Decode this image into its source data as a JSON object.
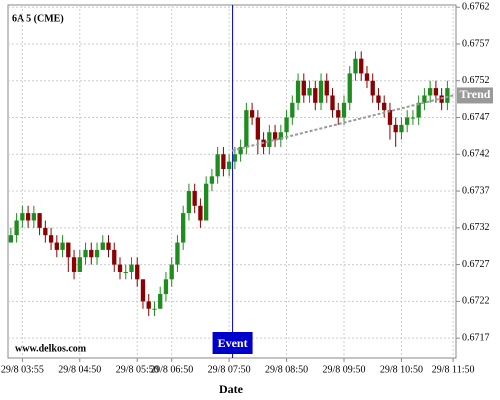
{
  "chart_data": {
    "type": "candlestick",
    "title": "6A 5 (CME)",
    "watermark": "www.delkos.com",
    "x_label": "Date",
    "up_color": "#1e8c1e",
    "down_color": "#8b0000",
    "open": [
      0.673,
      0.6731,
      0.6733,
      0.6734,
      0.6733,
      0.6734,
      0.6732,
      0.6731,
      0.673,
      0.6729,
      0.673,
      0.6728,
      0.6726,
      0.6728,
      0.6729,
      0.6728,
      0.6729,
      0.673,
      0.6729,
      0.6727,
      0.6726,
      0.6726,
      0.6727,
      0.6725,
      0.6722,
      0.6721,
      0.6721,
      0.6723,
      0.6725,
      0.6727,
      0.673,
      0.6734,
      0.6737,
      0.6735,
      0.6733,
      0.6738,
      0.6739,
      0.6742,
      0.674,
      0.6741,
      0.6742,
      0.6743,
      0.6748,
      0.6747,
      0.6744,
      0.6743,
      0.6745,
      0.6744,
      0.6745,
      0.6747,
      0.6749,
      0.6752,
      0.675,
      0.6751,
      0.6749,
      0.6752,
      0.675,
      0.6748,
      0.6747,
      0.6749,
      0.6753,
      0.6755,
      0.6753,
      0.6752,
      0.675,
      0.6749,
      0.6748,
      0.6746,
      0.6745,
      0.6746,
      0.6747,
      0.6747,
      0.6749,
      0.675,
      0.6751,
      0.675,
      0.6749
    ],
    "high": [
      0.6732,
      0.6734,
      0.6735,
      0.6735,
      0.6735,
      0.6734,
      0.6733,
      0.6732,
      0.6731,
      0.6731,
      0.673,
      0.6729,
      0.6729,
      0.673,
      0.673,
      0.673,
      0.6731,
      0.6731,
      0.673,
      0.6728,
      0.6727,
      0.6728,
      0.6728,
      0.6725,
      0.6723,
      0.6722,
      0.6724,
      0.6726,
      0.6728,
      0.6731,
      0.6735,
      0.6738,
      0.6738,
      0.6736,
      0.6739,
      0.674,
      0.6743,
      0.6743,
      0.6742,
      0.6743,
      0.6744,
      0.6749,
      0.6749,
      0.6748,
      0.6745,
      0.6746,
      0.6746,
      0.6746,
      0.6748,
      0.675,
      0.6753,
      0.6753,
      0.6752,
      0.6752,
      0.6753,
      0.6753,
      0.6751,
      0.6749,
      0.675,
      0.6754,
      0.6756,
      0.6756,
      0.6754,
      0.6753,
      0.6751,
      0.675,
      0.6749,
      0.6747,
      0.6747,
      0.6748,
      0.6748,
      0.675,
      0.6751,
      0.6752,
      0.6752,
      0.6751,
      0.6752
    ],
    "low": [
      0.673,
      0.673,
      0.6732,
      0.6732,
      0.6732,
      0.6731,
      0.673,
      0.6729,
      0.6728,
      0.6728,
      0.6726,
      0.6725,
      0.6726,
      0.6727,
      0.6727,
      0.6727,
      0.6729,
      0.6728,
      0.6726,
      0.6725,
      0.6725,
      0.6725,
      0.6724,
      0.6721,
      0.672,
      0.672,
      0.6721,
      0.6722,
      0.6724,
      0.6726,
      0.6729,
      0.6733,
      0.6734,
      0.6732,
      0.6733,
      0.6737,
      0.6738,
      0.6739,
      0.6739,
      0.674,
      0.6741,
      0.6742,
      0.6746,
      0.6742,
      0.6742,
      0.6742,
      0.6743,
      0.6743,
      0.6744,
      0.6746,
      0.6748,
      0.6749,
      0.6749,
      0.6748,
      0.6748,
      0.6749,
      0.6747,
      0.6746,
      0.6746,
      0.6748,
      0.6752,
      0.6752,
      0.6751,
      0.6749,
      0.6748,
      0.6747,
      0.6744,
      0.6743,
      0.6744,
      0.6745,
      0.6746,
      0.6746,
      0.6748,
      0.6749,
      0.6749,
      0.6748,
      0.6748
    ],
    "close": [
      0.6731,
      0.6733,
      0.6734,
      0.6733,
      0.6734,
      0.6732,
      0.6731,
      0.673,
      0.6729,
      0.673,
      0.6728,
      0.6726,
      0.6728,
      0.6729,
      0.6728,
      0.6729,
      0.673,
      0.6729,
      0.6727,
      0.6726,
      0.6726,
      0.6727,
      0.6725,
      0.6722,
      0.6721,
      0.6721,
      0.6723,
      0.6725,
      0.6727,
      0.673,
      0.6734,
      0.6737,
      0.6735,
      0.6733,
      0.6738,
      0.6739,
      0.6742,
      0.674,
      0.6741,
      0.6742,
      0.6743,
      0.6748,
      0.6747,
      0.6744,
      0.6743,
      0.6745,
      0.6744,
      0.6745,
      0.6747,
      0.6749,
      0.6752,
      0.675,
      0.6751,
      0.6749,
      0.6752,
      0.675,
      0.6748,
      0.6747,
      0.6749,
      0.6753,
      0.6755,
      0.6753,
      0.6752,
      0.675,
      0.6749,
      0.6748,
      0.6746,
      0.6745,
      0.6746,
      0.6747,
      0.6747,
      0.6749,
      0.675,
      0.6751,
      0.675,
      0.6749,
      0.6751
    ],
    "xlim": [
      -0.5,
      77.5
    ],
    "xticks": [
      {
        "value": 2,
        "label": "29/8 03:55"
      },
      {
        "value": 12,
        "label": "29/8 04:50"
      },
      {
        "value": 22,
        "label": "29/8 05:50"
      },
      {
        "value": 28,
        "label": "29/8 06:50"
      },
      {
        "value": 38,
        "label": "29/8 07:50"
      },
      {
        "value": 48,
        "label": "29/8 08:50"
      },
      {
        "value": 58,
        "label": "29/8 09:50"
      },
      {
        "value": 68,
        "label": "29/8 10:50"
      },
      {
        "value": 77,
        "label": "29/8 11:50"
      }
    ],
    "ylim": [
      0.67143,
      0.67623
    ],
    "yticks": [
      0.6717,
      0.6722,
      0.6727,
      0.6732,
      0.6737,
      0.6742,
      0.6747,
      0.6752,
      0.6757,
      0.6762
    ],
    "grid": true,
    "event": {
      "label": "Event",
      "x": 38.6,
      "color": "#0000cc"
    },
    "trend": {
      "label": "Trend",
      "x": [
        38.5,
        77
      ],
      "y": [
        0.67425,
        0.675
      ],
      "color": "#999999"
    }
  }
}
